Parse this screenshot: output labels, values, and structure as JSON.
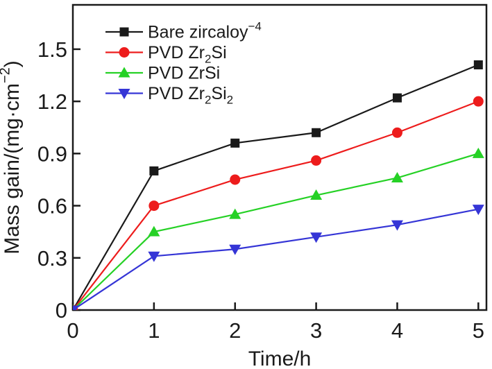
{
  "chart_data": {
    "type": "line",
    "title": "",
    "xlabel": "Time/h",
    "ylabel": "Mass gain/(mg·cm⁻²)",
    "x": [
      0,
      1,
      2,
      3,
      4,
      5
    ],
    "xticks": {
      "values": [
        0,
        1,
        2,
        3,
        4,
        5
      ],
      "labels": [
        "0",
        "1",
        "2",
        "3",
        "4",
        "5"
      ]
    },
    "yticks": {
      "values": [
        0,
        0.3,
        0.6,
        0.9,
        1.2,
        1.5
      ],
      "labels": [
        "0",
        "0.3",
        "0.6",
        "0.9",
        "1.2",
        "1.5"
      ]
    },
    "xlim": [
      0,
      5.1
    ],
    "ylim": [
      0,
      1.755
    ],
    "grid": false,
    "legend_position": "top-left",
    "series": [
      {
        "name": "Bare zircaloy⁻⁴",
        "marker": "square",
        "color": "#1a1a1a",
        "values": [
          0,
          0.8,
          0.96,
          1.02,
          1.22,
          1.41
        ]
      },
      {
        "name": "PVD Zr₂Si",
        "marker": "circle",
        "color": "#ed1c1c",
        "values": [
          0,
          0.6,
          0.75,
          0.86,
          1.02,
          1.2
        ]
      },
      {
        "name": "PVD ZrSi",
        "marker": "triangle-up",
        "color": "#25d125",
        "values": [
          0,
          0.45,
          0.55,
          0.66,
          0.76,
          0.9
        ]
      },
      {
        "name": "PVD Zr₂Si₂",
        "marker": "triangle-down",
        "color": "#3535d6",
        "values": [
          0,
          0.31,
          0.35,
          0.42,
          0.49,
          0.58
        ]
      }
    ],
    "axis_color": "#1a1a1a"
  }
}
